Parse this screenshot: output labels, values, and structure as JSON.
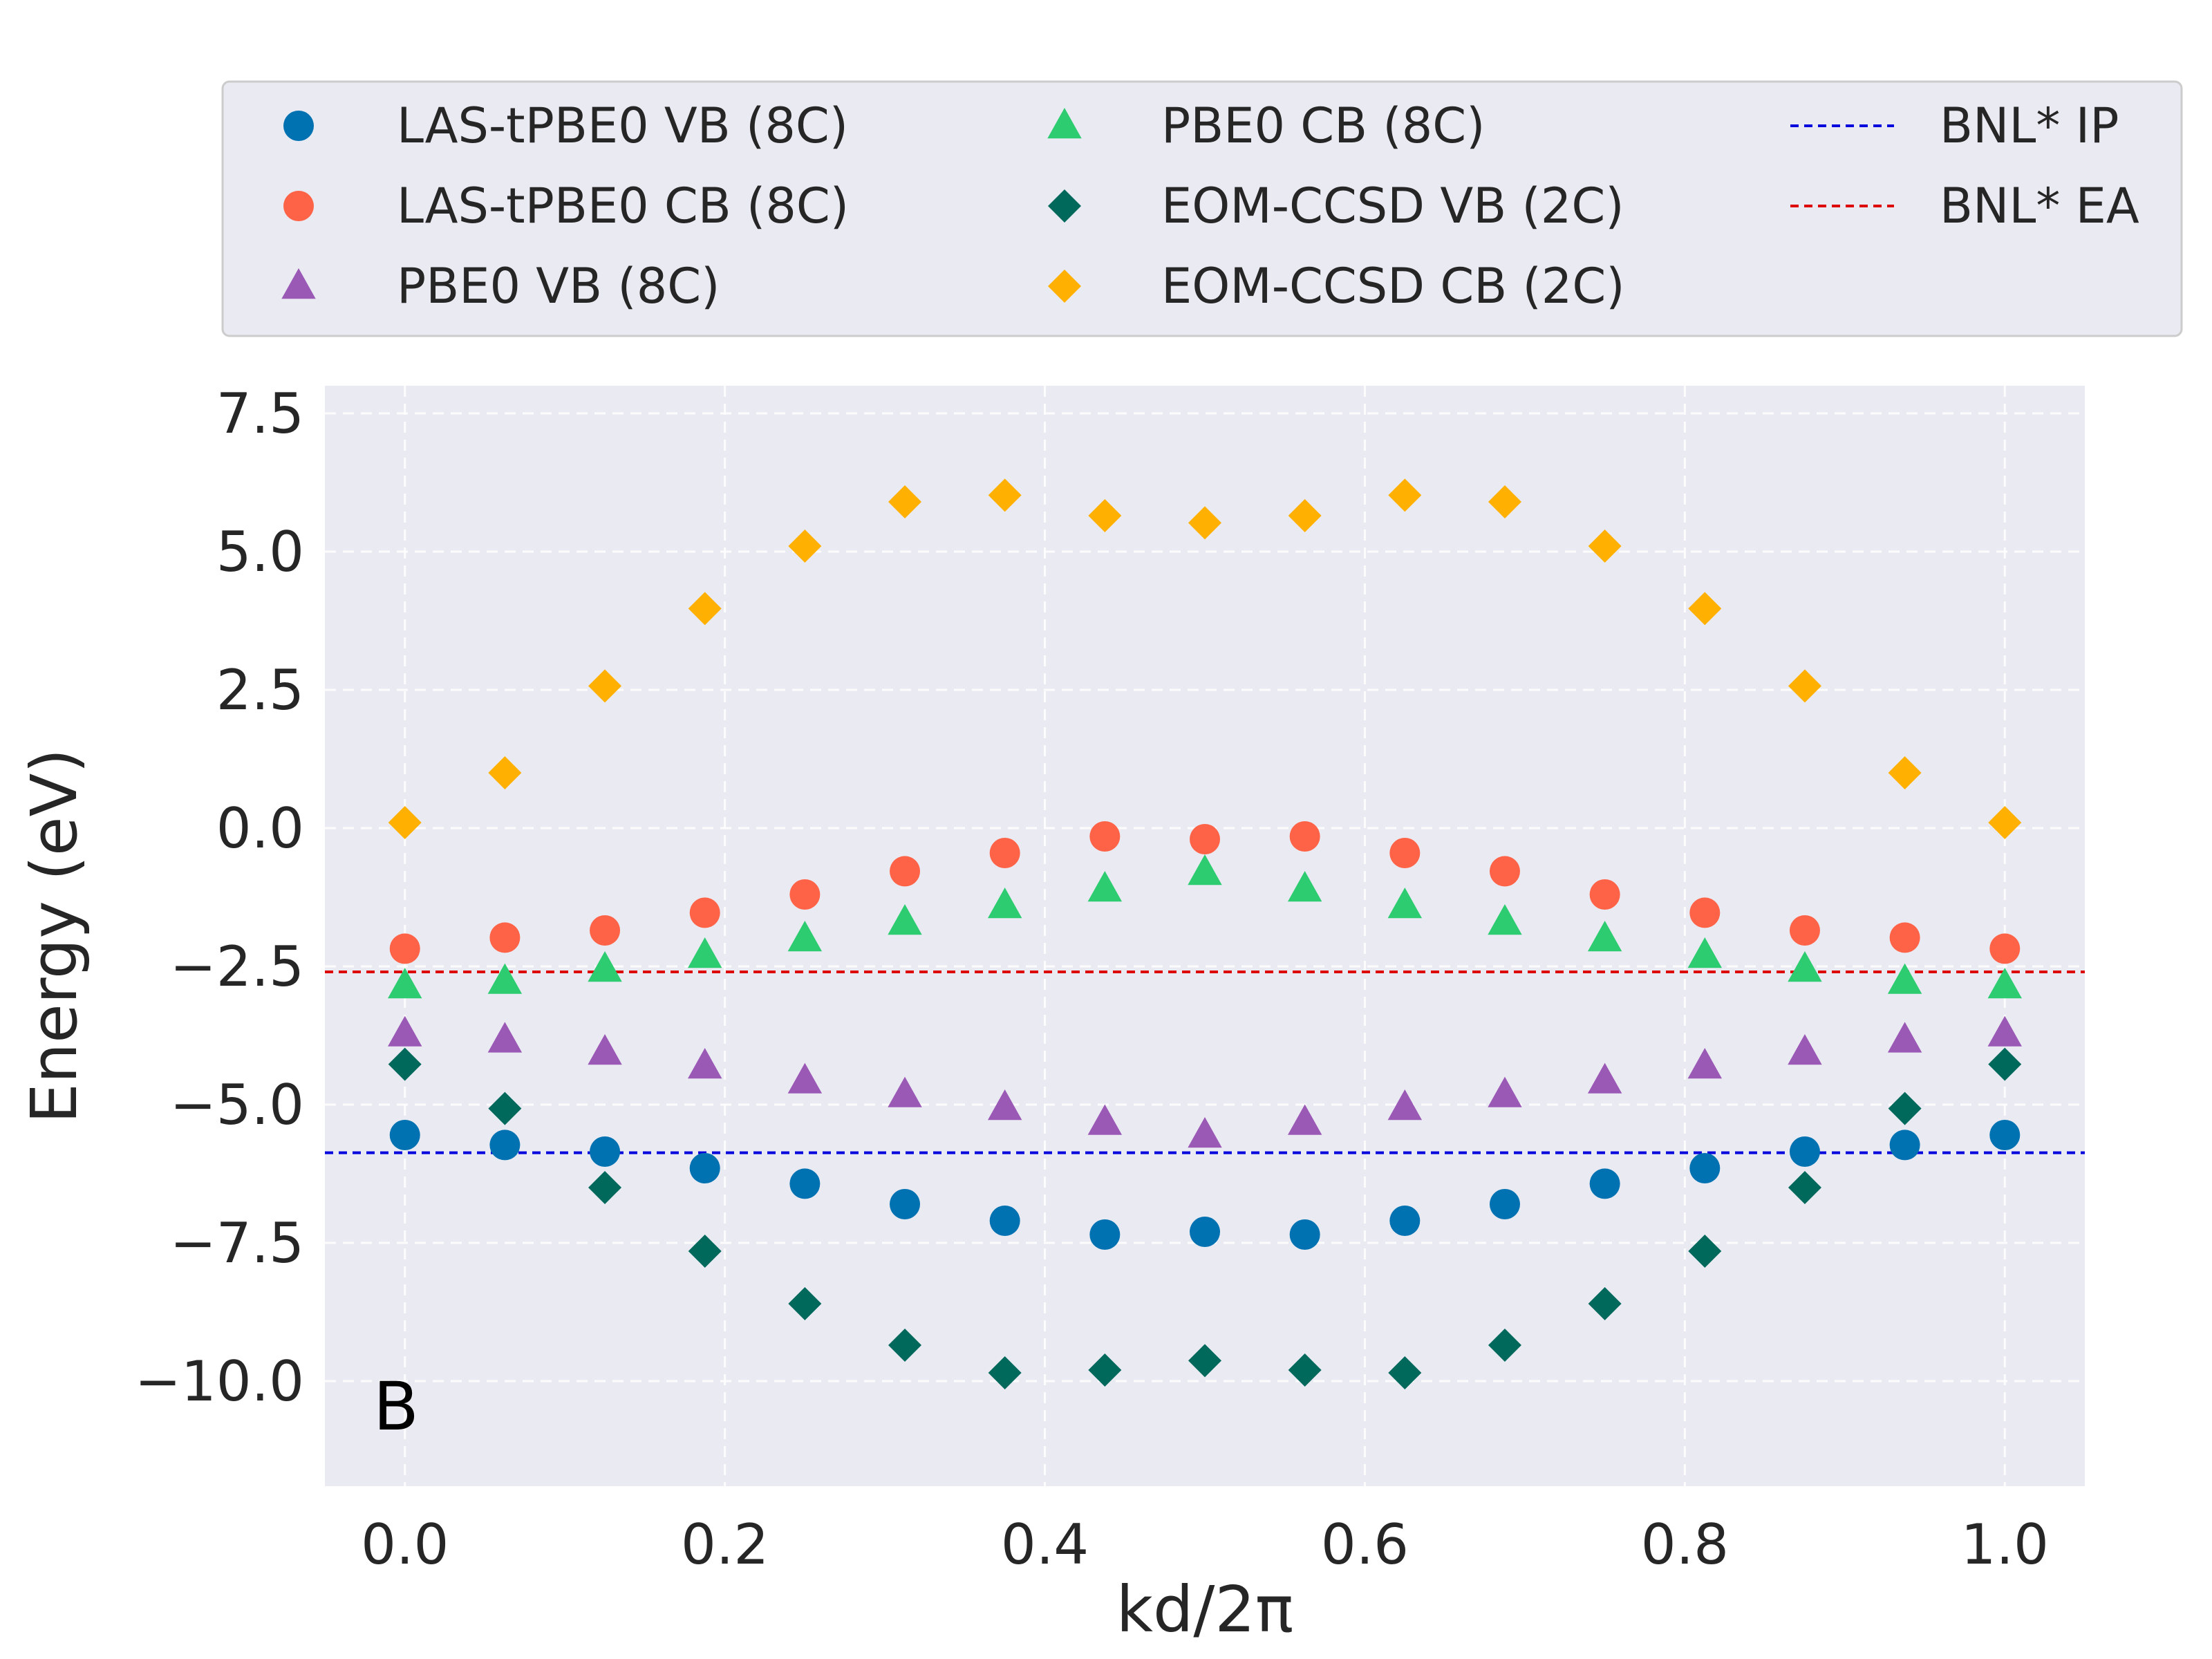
{
  "chart_data": {
    "type": "scatter",
    "panel_label": "B",
    "xlabel": "kd/2π",
    "ylabel": "Energy (eV)",
    "xlim": [
      -0.05,
      1.05
    ],
    "ylim": [
      -11.9,
      8.0
    ],
    "xticks": [
      0.0,
      0.2,
      0.4,
      0.6,
      0.8,
      1.0
    ],
    "xtick_labels": [
      "0.0",
      "0.2",
      "0.4",
      "0.6",
      "0.8",
      "1.0"
    ],
    "yticks": [
      7.5,
      5.0,
      2.5,
      0.0,
      -2.5,
      -5.0,
      -7.5,
      -10.0
    ],
    "ytick_labels": [
      "7.5",
      "5.0",
      "2.5",
      "0.0",
      "−2.5",
      "−5.0",
      "−7.5",
      "−10.0"
    ],
    "grid": true,
    "legend_position": "top (above plot)",
    "x": [
      0.0,
      0.0625,
      0.125,
      0.1875,
      0.25,
      0.3125,
      0.375,
      0.4375,
      0.5,
      0.5625,
      0.625,
      0.6875,
      0.75,
      0.8125,
      0.875,
      0.9375,
      1.0
    ],
    "series": [
      {
        "name": "LAS-tPBE0 VB (8C)",
        "marker": "circle",
        "color": "#0072B2",
        "values": [
          -5.55,
          -5.73,
          -5.85,
          -6.15,
          -6.43,
          -6.8,
          -7.1,
          -7.35,
          -7.3,
          -7.35,
          -7.1,
          -6.8,
          -6.43,
          -6.15,
          -5.85,
          -5.73,
          -5.55
        ]
      },
      {
        "name": "LAS-tPBE0 CB (8C)",
        "marker": "circle",
        "color": "#FF6347",
        "values": [
          -2.18,
          -1.98,
          -1.85,
          -1.53,
          -1.2,
          -0.78,
          -0.45,
          -0.15,
          -0.2,
          -0.15,
          -0.45,
          -0.78,
          -1.2,
          -1.53,
          -1.85,
          -1.98,
          -2.18
        ]
      },
      {
        "name": "PBE0 VB (8C)",
        "marker": "triangle",
        "color": "#9B59B6",
        "values": [
          -3.72,
          -3.83,
          -4.05,
          -4.3,
          -4.57,
          -4.82,
          -5.05,
          -5.32,
          -5.55,
          -5.32,
          -5.05,
          -4.82,
          -4.57,
          -4.3,
          -4.05,
          -3.83,
          -3.72
        ]
      },
      {
        "name": "PBE0 CB (8C)",
        "marker": "triangle",
        "color": "#2ECC71",
        "values": [
          -2.85,
          -2.77,
          -2.55,
          -2.3,
          -2.0,
          -1.7,
          -1.4,
          -1.1,
          -0.8,
          -1.1,
          -1.4,
          -1.7,
          -2.0,
          -2.3,
          -2.55,
          -2.77,
          -2.85
        ]
      },
      {
        "name": "EOM-CCSD VB (2C)",
        "marker": "diamond",
        "color": "#00695C",
        "values": [
          -4.27,
          -5.07,
          -6.5,
          -7.65,
          -8.6,
          -9.35,
          -9.85,
          -9.8,
          -9.63,
          -9.8,
          -9.85,
          -9.35,
          -8.6,
          -7.65,
          -6.5,
          -5.07,
          -4.27
        ]
      },
      {
        "name": "EOM-CCSD CB (2C)",
        "marker": "diamond",
        "color": "#FFB000",
        "values": [
          0.1,
          1.0,
          2.57,
          3.97,
          5.1,
          5.9,
          6.02,
          5.65,
          5.52,
          5.65,
          6.02,
          5.9,
          5.1,
          3.97,
          2.57,
          1.0,
          0.1
        ]
      }
    ],
    "hlines": [
      {
        "name": "BNL* IP",
        "y": -5.87,
        "color": "#0000DD"
      },
      {
        "name": "BNL* EA",
        "y": -2.6,
        "color": "#DD0000"
      }
    ]
  },
  "colors": {
    "plot_background": "#EAEAF2",
    "grid": "#FFFFFF",
    "text": "#262626",
    "legend_background": "#EAEAF2",
    "legend_border": "#CCCCCC"
  }
}
